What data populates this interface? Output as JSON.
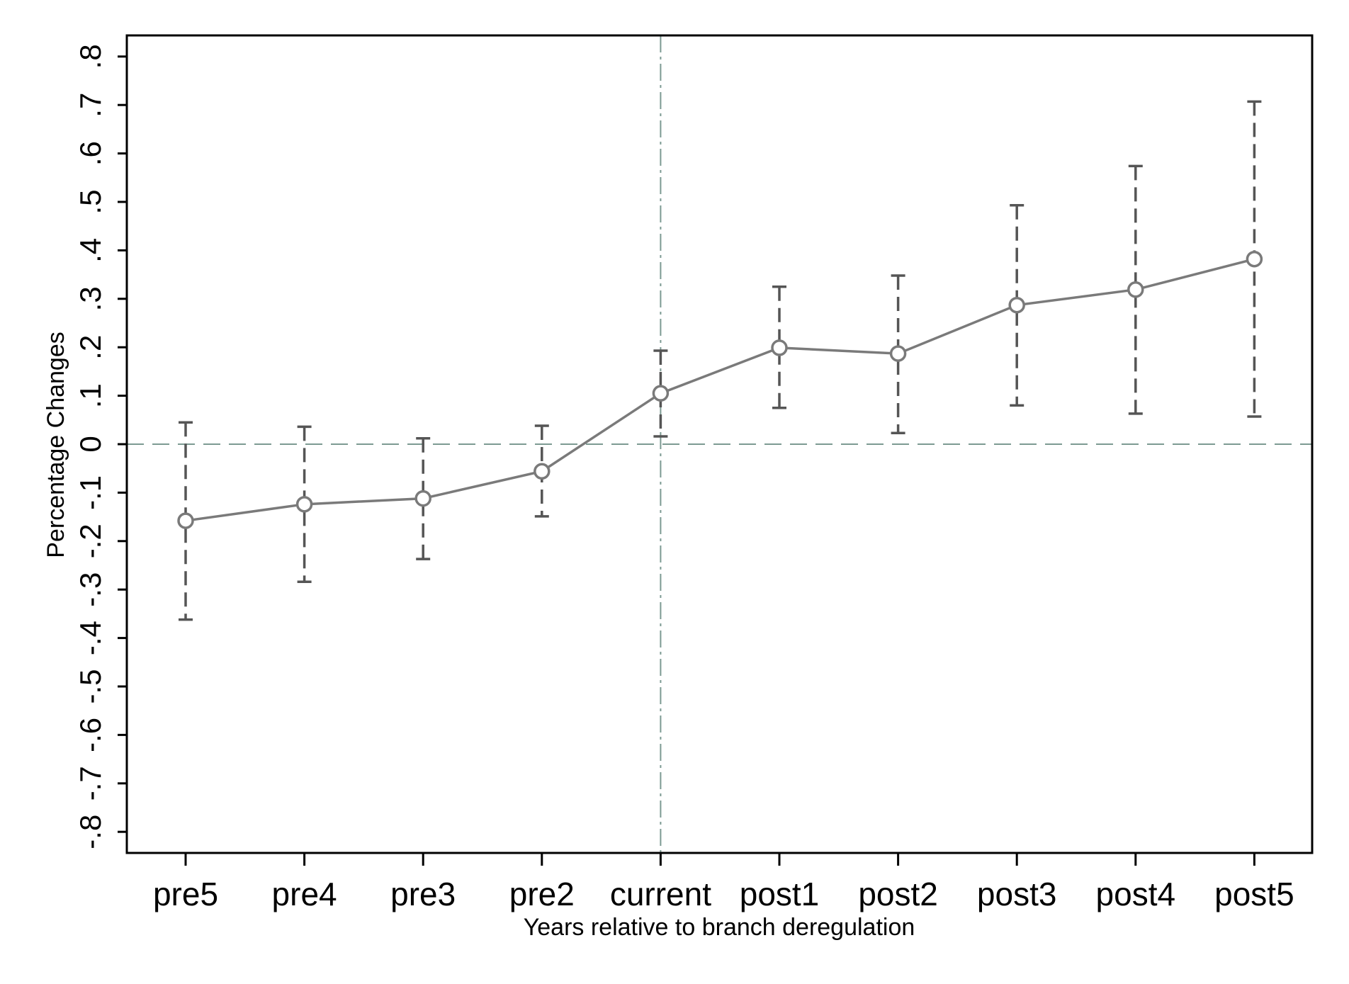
{
  "chart_data": {
    "type": "line",
    "title": "",
    "xlabel": "Years relative to branch deregulation",
    "ylabel": "Percentage Changes",
    "categories": [
      "pre5",
      "pre4",
      "pre3",
      "pre2",
      "current",
      "post1",
      "post2",
      "post3",
      "post4",
      "post5"
    ],
    "series": [
      {
        "values": [
          -0.158,
          -0.124,
          -0.112,
          -0.056,
          0.105,
          0.199,
          0.187,
          0.287,
          0.319,
          0.382
        ],
        "ci_lower": [
          -0.362,
          -0.284,
          -0.237,
          -0.149,
          0.016,
          0.075,
          0.023,
          0.08,
          0.063,
          0.057
        ],
        "ci_upper": [
          0.045,
          0.036,
          0.012,
          0.038,
          0.193,
          0.325,
          0.348,
          0.493,
          0.574,
          0.707
        ]
      }
    ],
    "ylim": [
      -0.8,
      0.8
    ],
    "yticks": [
      -0.8,
      -0.7,
      -0.6,
      -0.5,
      -0.4,
      -0.3,
      -0.2,
      -0.1,
      0,
      0.1,
      0.2,
      0.3,
      0.4,
      0.5,
      0.6,
      0.7,
      0.8
    ],
    "ytick_labels": [
      "-.8",
      "-.7",
      "-.6",
      "-.5",
      "-.4",
      "-.3",
      "-.2",
      "-.1",
      "0",
      ".1",
      ".2",
      ".3",
      ".4",
      ".5",
      ".6",
      ".7",
      ".8"
    ],
    "reference_lines": {
      "y": 0,
      "x": "current"
    },
    "grid": false,
    "legend": "none",
    "colors": {
      "line": "#7a7a7a",
      "ci": "#555555",
      "reference": "#7c9a92",
      "axis": "#000000"
    }
  }
}
